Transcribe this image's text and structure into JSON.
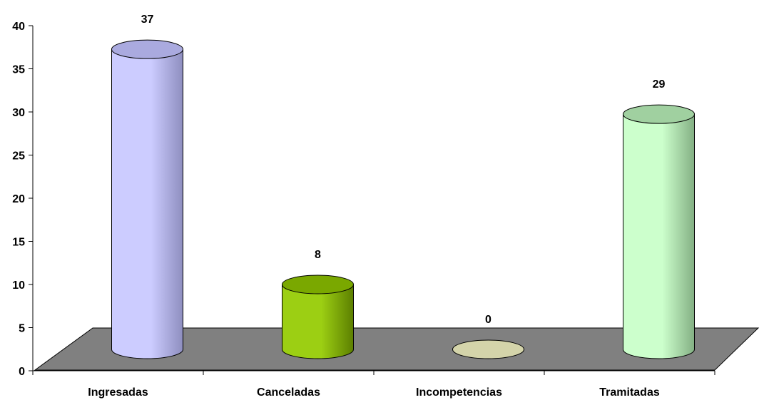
{
  "chart_data": {
    "type": "bar",
    "style": "3d-cylinder",
    "categories": [
      "Ingresadas",
      "Canceladas",
      "Incompetencias",
      "Tramitadas"
    ],
    "values": [
      37,
      8,
      0,
      29
    ],
    "data_labels": [
      "37",
      "8",
      "0",
      "29"
    ],
    "ylim": [
      0,
      40
    ],
    "yticks": [
      "0",
      "5",
      "10",
      "15",
      "20",
      "25",
      "30",
      "35",
      "40"
    ],
    "grid": false,
    "legend": "none",
    "colors": {
      "floor": "#808080",
      "bars": [
        {
          "light": "#ccccff",
          "dark": "#8e8ebf",
          "top": "#aaaadf"
        },
        {
          "light": "#9ccf13",
          "dark": "#5c7f00",
          "top": "#7aa800"
        },
        {
          "light": "#e0e0b0",
          "dark": "#b8b890",
          "top": "#d4d4aa"
        },
        {
          "light": "#ccffcc",
          "dark": "#84b084",
          "top": "#a0d0a0"
        }
      ]
    }
  }
}
